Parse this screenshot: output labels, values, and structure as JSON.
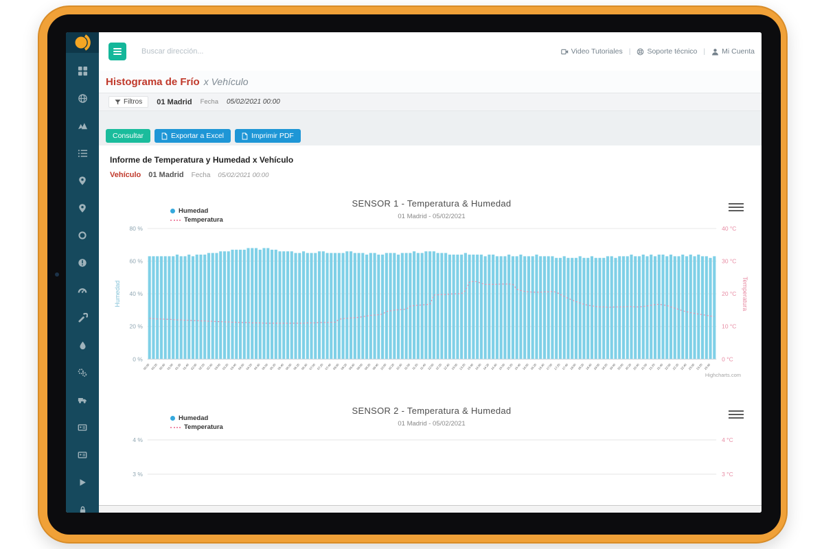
{
  "app": {
    "topbar": {
      "search_placeholder": "Buscar dirección...",
      "separator": "|",
      "links": [
        {
          "label": "Video Tutoriales",
          "icon": "video-icon"
        },
        {
          "label": "Soporte técnico",
          "icon": "support-icon"
        },
        {
          "label": "Mi Cuenta",
          "icon": "user-icon"
        }
      ]
    },
    "page": {
      "title_primary": "Histograma de Frío",
      "title_secondary": "x Vehículo"
    },
    "filters": {
      "label": "Filtros",
      "vehicle": "01 Madrid",
      "date_label": "Fecha",
      "date_value": "05/02/2021 00:00"
    },
    "actions": [
      {
        "label": "Consultar"
      },
      {
        "label": "Exportar a Excel",
        "icon": "file-excel-icon"
      },
      {
        "label": "Imprimir PDF",
        "icon": "file-pdf-icon"
      }
    ],
    "report": {
      "heading": "Informe de Temperatura y Humedad x Vehículo",
      "vehicle_label": "Vehículo",
      "vehicle_value": "01 Madrid",
      "date_label": "Fecha",
      "date_value": "05/02/2021 00:00"
    },
    "sidebar": {
      "icons": [
        "dashboard-grid-icon",
        "globe-icon",
        "route-icon",
        "list-icon",
        "map-pin-icon",
        "map-pin-alt-icon",
        "target-ring-icon",
        "alert-circle-icon",
        "tachometer-icon",
        "wrench-icon",
        "droplet-icon",
        "cogs-icon",
        "truck-icon",
        "id-card-icon",
        "id-card-alt-icon",
        "play-icon",
        "lock-icon"
      ]
    },
    "credits": "Highcharts.com"
  },
  "colors": {
    "tablet_frame": "#f0a138",
    "bezel": "#0c0c0e",
    "sidebar_bg": "#16495d",
    "sidebar_logo_bg": "#0e3749",
    "logo_orange": "#f5a623",
    "primary_teal": "#1abc9c",
    "primary_blue": "#1e96d6",
    "title_red": "#c0392b",
    "humidity_bar": "#7fd0e7",
    "temperature_line": "#ef8aa6",
    "left_axis_text": "#8fa6b2",
    "right_axis_text": "#e78ba3"
  },
  "chart_data": [
    {
      "type": "bar",
      "title": "SENSOR 1 - Temperatura & Humedad",
      "subtitle": "01 Madrid - 05/02/2021",
      "legend_position": "top-left",
      "grid": true,
      "y_left": {
        "title": "Humedad",
        "unit": "%",
        "min": 0,
        "max": 80,
        "tick_values": [
          0,
          20,
          40,
          60,
          80
        ],
        "tick_labels": [
          "0 %",
          "20 %",
          "40 %",
          "60 %",
          "80 %"
        ]
      },
      "y_right": {
        "title": "Temperatura",
        "unit": "°C",
        "min": 0,
        "max": 40,
        "tick_values": [
          0,
          10,
          20,
          30,
          40
        ],
        "tick_labels": [
          "0 °C",
          "10 °C",
          "20 °C",
          "30 °C",
          "40 °C"
        ]
      },
      "x_axis": {
        "type": "time",
        "interval_minutes": 20,
        "label_every_n": 2,
        "labels": [
          "00:00",
          "00:20",
          "00:40",
          "01:00",
          "01:20",
          "01:40",
          "02:00",
          "02:20",
          "02:40",
          "03:00",
          "03:20",
          "03:40",
          "04:00",
          "04:20",
          "04:40",
          "05:00",
          "05:20",
          "05:40",
          "06:00",
          "06:20",
          "06:40",
          "07:00",
          "07:20",
          "07:40",
          "08:00",
          "08:20",
          "08:40",
          "09:00",
          "09:20",
          "09:40",
          "10:00",
          "10:20",
          "10:40",
          "11:00",
          "11:20",
          "11:40",
          "12:00",
          "12:20",
          "12:40",
          "13:00",
          "13:20",
          "13:40",
          "14:00",
          "14:20",
          "14:40",
          "15:00",
          "15:20",
          "15:40",
          "16:00",
          "16:20",
          "16:40",
          "17:00",
          "17:20",
          "17:40",
          "18:00",
          "18:20",
          "18:40",
          "19:00",
          "19:20",
          "19:40",
          "20:00",
          "20:20",
          "20:40",
          "21:00",
          "21:20",
          "21:40",
          "22:00",
          "22:20",
          "22:40",
          "23:00",
          "23:20",
          "23:40"
        ]
      },
      "series": [
        {
          "name": "Humedad",
          "type": "column",
          "color": "#7fd0e7",
          "values": [
            63,
            63,
            63,
            63,
            63,
            63,
            63,
            64,
            63,
            63,
            64,
            63,
            64,
            64,
            64,
            65,
            65,
            65,
            66,
            66,
            66,
            67,
            67,
            67,
            67,
            68,
            68,
            68,
            67,
            68,
            68,
            67,
            67,
            66,
            66,
            66,
            66,
            65,
            65,
            66,
            65,
            65,
            65,
            66,
            66,
            65,
            65,
            65,
            65,
            65,
            66,
            66,
            65,
            65,
            65,
            64,
            65,
            65,
            64,
            64,
            65,
            65,
            65,
            64,
            65,
            65,
            65,
            66,
            65,
            65,
            66,
            66,
            66,
            65,
            65,
            65,
            64,
            64,
            64,
            64,
            65,
            64,
            64,
            64,
            64,
            63,
            64,
            64,
            63,
            63,
            63,
            64,
            63,
            63,
            64,
            63,
            63,
            63,
            64,
            63,
            63,
            63,
            63,
            62,
            62,
            63,
            62,
            62,
            62,
            63,
            62,
            62,
            63,
            62,
            62,
            62,
            63,
            63,
            62,
            63,
            63,
            63,
            64,
            63,
            63,
            64,
            63,
            64,
            63,
            64,
            64,
            63,
            64,
            63,
            63,
            64,
            63,
            64,
            63,
            64,
            63,
            63,
            62,
            63
          ]
        },
        {
          "name": "Temperatura",
          "type": "line",
          "dash": "dot",
          "color": "#ef8aa6",
          "values": [
            12.5,
            12.4,
            12.3,
            12.3,
            12.2,
            12.2,
            12.1,
            12.0,
            12.0,
            11.9,
            11.9,
            11.8,
            11.8,
            11.7,
            11.7,
            11.6,
            11.6,
            11.5,
            11.5,
            11.4,
            11.4,
            11.3,
            11.3,
            11.2,
            11.2,
            11.2,
            11.1,
            11.1,
            11.1,
            11.0,
            11.0,
            11.0,
            11.0,
            11.0,
            11.0,
            11.0,
            11.0,
            11.0,
            11.0,
            11.0,
            11.1,
            11.1,
            11.1,
            11.2,
            11.2,
            11.2,
            11.3,
            11.3,
            12.2,
            12.4,
            12.5,
            12.6,
            12.7,
            12.8,
            13.0,
            13.2,
            13.4,
            13.5,
            13.6,
            13.8,
            14.6,
            14.8,
            15.0,
            15.1,
            15.2,
            15.3,
            16.2,
            16.4,
            16.5,
            16.6,
            16.7,
            16.8,
            19.6,
            19.7,
            19.8,
            19.8,
            19.9,
            20.0,
            20.0,
            20.1,
            21.0,
            23.6,
            23.8,
            23.7,
            23.2,
            22.9,
            22.9,
            22.9,
            22.9,
            23.0,
            23.0,
            23.0,
            22.9,
            21.4,
            21.0,
            20.7,
            20.6,
            20.5,
            20.5,
            20.5,
            20.6,
            20.6,
            20.7,
            20.5,
            19.8,
            19.2,
            18.6,
            18.1,
            17.6,
            17.2,
            16.8,
            16.5,
            16.3,
            16.1,
            16.0,
            16.0,
            15.9,
            15.9,
            16.0,
            16.0,
            16.0,
            16.1,
            16.1,
            16.0,
            16.0,
            16.1,
            16.3,
            16.5,
            16.7,
            16.8,
            16.6,
            16.4,
            16.0,
            15.6,
            15.2,
            14.8,
            14.5,
            14.2,
            14.0,
            13.8,
            13.6,
            13.4,
            13.2,
            13.0
          ]
        }
      ],
      "credit": "Highcharts.com"
    },
    {
      "type": "bar",
      "title": "SENSOR 2 - Temperatura & Humedad",
      "subtitle": "01 Madrid - 05/02/2021",
      "legend_position": "top-left",
      "grid": true,
      "visible_portion": "top only, cropped by screen edge",
      "y_left": {
        "title": "Humedad",
        "unit": "%",
        "tick_values": [
          4,
          3
        ],
        "tick_labels": [
          "4 %",
          "3 %"
        ]
      },
      "y_right": {
        "title": "Temperatura",
        "unit": "°C",
        "tick_values": [
          4,
          3
        ],
        "tick_labels": [
          "4 °C",
          "3 °C"
        ]
      },
      "series": [
        {
          "name": "Humedad",
          "type": "column",
          "color": "#7fd0e7",
          "values": []
        },
        {
          "name": "Temperatura",
          "type": "line",
          "dash": "dot",
          "color": "#ef8aa6",
          "values": []
        }
      ]
    }
  ]
}
